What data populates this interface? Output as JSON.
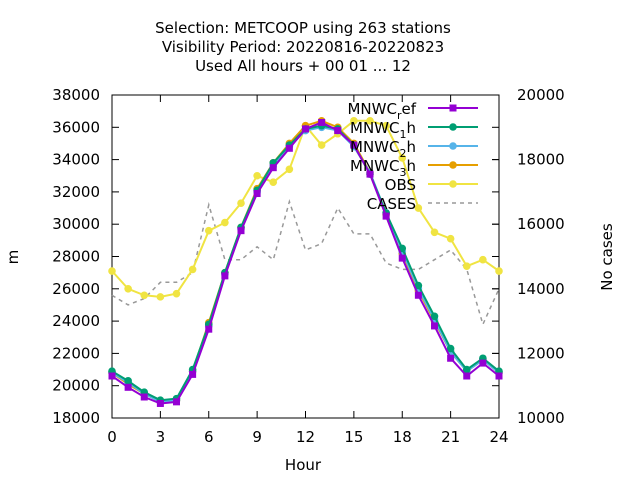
{
  "chart_data": {
    "type": "line",
    "title_lines": [
      "Selection: METCOOP using   263 stations",
      "Visibility   Period: 20220816-20220823",
      "Used  All hours  + 00 01 ... 12"
    ],
    "xlabel": "Hour",
    "ylabel": "m",
    "y2label": "No cases",
    "xlim": [
      0,
      24
    ],
    "ylim": [
      18000,
      38000
    ],
    "y2lim": [
      10000,
      20000
    ],
    "xticks": [
      0,
      3,
      6,
      9,
      12,
      15,
      18,
      21,
      24
    ],
    "yticks": [
      18000,
      20000,
      22000,
      24000,
      26000,
      28000,
      30000,
      32000,
      34000,
      36000,
      38000
    ],
    "y2ticks": [
      10000,
      12000,
      14000,
      16000,
      18000,
      20000
    ],
    "legend_position": "top-right",
    "grid": false,
    "x": [
      0,
      1,
      2,
      3,
      4,
      5,
      6,
      7,
      8,
      9,
      10,
      11,
      12,
      13,
      14,
      15,
      16,
      17,
      18,
      19,
      20,
      21,
      22,
      23,
      24
    ],
    "series": [
      {
        "name": "MNWC_ref",
        "legend_main": "MNWC",
        "legend_sub": "r",
        "legend_tail": "ef",
        "color": "#9400d3",
        "marker": "square",
        "axis": "y",
        "values": [
          20600,
          19900,
          19300,
          18900,
          19000,
          20700,
          23500,
          26800,
          29600,
          31900,
          33500,
          34700,
          35900,
          36300,
          35800,
          34900,
          33100,
          30500,
          27900,
          25600,
          23700,
          21700,
          20600,
          21400,
          20600
        ]
      },
      {
        "name": "MNWC_1h",
        "legend_main": "MNWC",
        "legend_sub": "1",
        "legend_tail": "h",
        "color": "#009e73",
        "marker": "circle",
        "axis": "y",
        "values": [
          20900,
          20300,
          19600,
          19100,
          19200,
          21000,
          23800,
          27000,
          29800,
          32100,
          33800,
          34900,
          35900,
          36100,
          35900,
          34900,
          33100,
          30700,
          28500,
          26200,
          24300,
          22300,
          21000,
          21700,
          20900
        ]
      },
      {
        "name": "MNWC_2h",
        "legend_main": "MNWC",
        "legend_sub": "2",
        "legend_tail": "h",
        "color": "#56b4e9",
        "marker": "circle",
        "axis": "y",
        "values": [
          20800,
          20200,
          19500,
          19000,
          19100,
          20900,
          23700,
          26900,
          29700,
          32000,
          33600,
          34800,
          35800,
          36000,
          35800,
          34800,
          33200,
          30700,
          28300,
          26000,
          24100,
          22100,
          20900,
          21600,
          20800
        ]
      },
      {
        "name": "MNWC_3h",
        "legend_main": "MNWC",
        "legend_sub": "3",
        "legend_tail": "h",
        "color": "#e69f00",
        "marker": "circle",
        "axis": "y",
        "values": [
          20800,
          20100,
          19500,
          19000,
          19100,
          20900,
          23900,
          27000,
          29800,
          32200,
          33800,
          35000,
          36100,
          36400,
          36000,
          35000,
          33200,
          30600,
          28200,
          25900,
          24000,
          22100,
          20900,
          21600,
          20800
        ]
      },
      {
        "name": "OBS",
        "legend_main": "OBS",
        "color": "#f0e442",
        "marker": "circle",
        "axis": "y",
        "values": [
          27100,
          26000,
          25600,
          25500,
          25700,
          27200,
          29600,
          30100,
          31300,
          33000,
          32600,
          33400,
          36100,
          34900,
          35600,
          36400,
          36400,
          36100,
          34100,
          31000,
          29500,
          29100,
          27400,
          27800,
          27100
        ]
      },
      {
        "name": "CASES",
        "legend_main": "CASES",
        "color": "#999999",
        "marker": "none",
        "dashed": true,
        "axis": "y2",
        "values": [
          13800,
          13500,
          13700,
          14200,
          14200,
          14500,
          16600,
          14900,
          14900,
          15300,
          14900,
          16700,
          15200,
          15400,
          16500,
          15700,
          15700,
          14800,
          14600,
          14600,
          14900,
          15200,
          14600,
          12900,
          14000
        ]
      }
    ]
  }
}
